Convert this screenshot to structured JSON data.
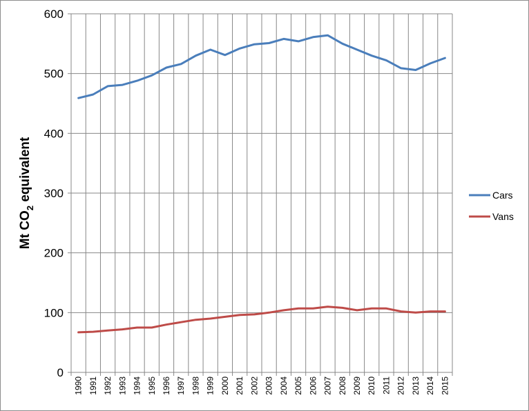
{
  "chart_data": {
    "type": "line",
    "title": "",
    "xlabel": "",
    "ylabel": {
      "prefix": "Mt CO",
      "subscript": "2",
      "suffix": " equivalent"
    },
    "ylim": [
      0,
      600
    ],
    "yticks": [
      "0",
      "100",
      "200",
      "300",
      "400",
      "500",
      "600"
    ],
    "grid": true,
    "legend_position": "right",
    "x": [
      "1990",
      "1991",
      "1992",
      "1993",
      "1994",
      "1995",
      "1996",
      "1997",
      "1998",
      "1999",
      "2000",
      "2001",
      "2002",
      "2003",
      "2004",
      "2005",
      "2006",
      "2007",
      "2008",
      "2009",
      "2010",
      "2011",
      "2012",
      "2013",
      "2014",
      "2015"
    ],
    "series": [
      {
        "name": "Cars",
        "color": "#4a7ebb",
        "values": [
          459,
          465,
          479,
          481,
          488,
          497,
          510,
          516,
          530,
          540,
          531,
          542,
          549,
          551,
          558,
          554,
          561,
          564,
          550,
          540,
          530,
          522,
          509,
          506,
          517,
          526
        ]
      },
      {
        "name": "Vans",
        "color": "#be4b48",
        "values": [
          67,
          68,
          70,
          72,
          75,
          75,
          80,
          84,
          88,
          90,
          93,
          96,
          97,
          100,
          104,
          107,
          107,
          110,
          108,
          104,
          107,
          107,
          102,
          100,
          102,
          102
        ]
      }
    ]
  }
}
